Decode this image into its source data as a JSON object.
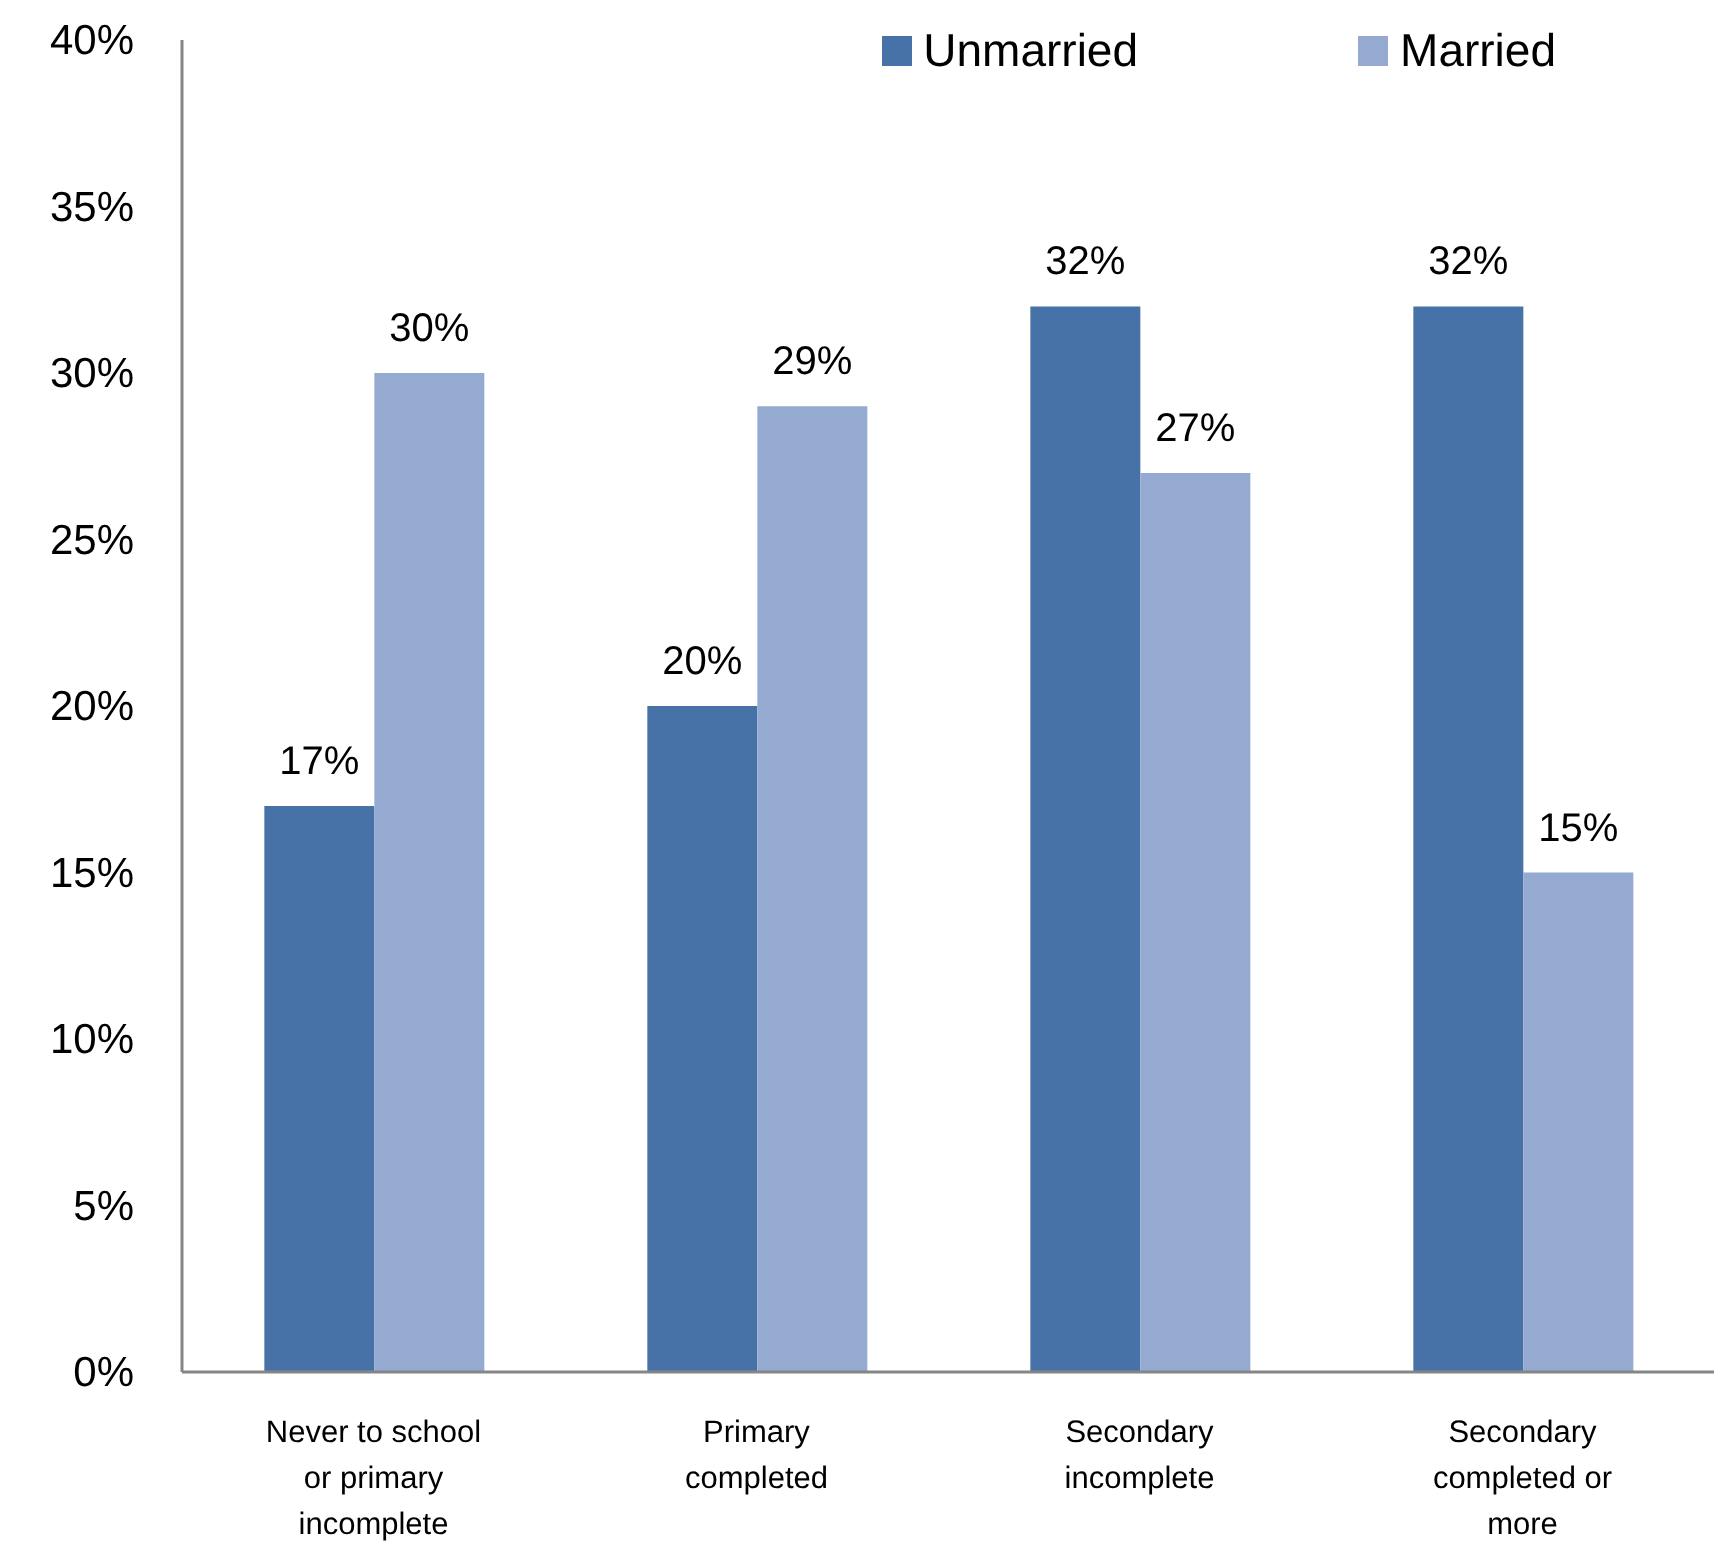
{
  "chart_data": {
    "type": "bar",
    "categories": [
      "Never to school or primary incomplete",
      "Primary completed",
      "Secondary incomplete",
      "Secondary completed or more"
    ],
    "series": [
      {
        "name": "Unmarried",
        "color": "#4672a8",
        "values": [
          17,
          20,
          32,
          32
        ],
        "value_labels": [
          "17%",
          "20%",
          "32%",
          "32%"
        ]
      },
      {
        "name": "Married",
        "color": "#95aad0",
        "values": [
          30,
          29,
          27,
          15
        ],
        "value_labels": [
          "30%",
          "29%",
          "27%",
          "15%"
        ]
      }
    ],
    "ylim": [
      0,
      40
    ],
    "yticks": [
      {
        "value": 0,
        "label": "0%"
      },
      {
        "value": 5,
        "label": "5%"
      },
      {
        "value": 10,
        "label": "10%"
      },
      {
        "value": 15,
        "label": "15%"
      },
      {
        "value": 20,
        "label": "20%"
      },
      {
        "value": 25,
        "label": "25%"
      },
      {
        "value": 30,
        "label": "30%"
      },
      {
        "value": 35,
        "label": "35%"
      },
      {
        "value": 40,
        "label": "40%"
      }
    ],
    "grid": false,
    "legend": "top right"
  }
}
